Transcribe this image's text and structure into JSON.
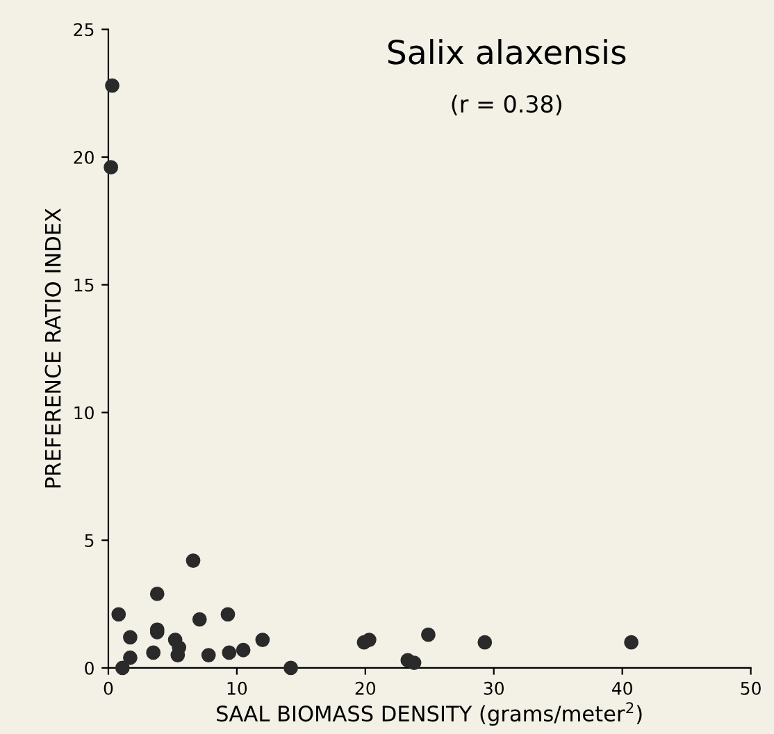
{
  "chart_data": {
    "type": "scatter",
    "title": "Salix alaxensis",
    "subtitle": "(r = 0.38)",
    "xlabel": "SAAL BIOMASS DENSITY (grams/meter$^{2}$)",
    "ylabel": "PREFERENCE RATIO INDEX",
    "x": [
      0.3,
      0.2,
      0.8,
      1.7,
      1.7,
      1.1,
      3.5,
      3.8,
      3.8,
      3.8,
      5.2,
      5.4,
      5.5,
      6.6,
      7.1,
      7.8,
      9.3,
      9.4,
      10.5,
      12.0,
      14.2,
      19.9,
      20.3,
      24.9,
      23.3,
      23.8,
      29.3,
      40.7
    ],
    "values": [
      22.8,
      19.6,
      2.1,
      1.2,
      0.4,
      0.0,
      0.6,
      2.9,
      1.5,
      1.4,
      1.1,
      0.5,
      0.8,
      4.2,
      1.9,
      0.5,
      2.1,
      0.6,
      0.7,
      1.1,
      0.0,
      1.0,
      1.1,
      1.3,
      0.3,
      0.2,
      1.0,
      1.0
    ],
    "color": "#2a2a2a",
    "marker": "circle",
    "xlim": [
      0,
      50
    ],
    "ylim": [
      0,
      25
    ],
    "xticks": [
      0,
      10,
      20,
      30,
      40,
      50
    ],
    "yticks": [
      0,
      5,
      10,
      15,
      20,
      25
    ],
    "grid": false,
    "legend": false
  }
}
